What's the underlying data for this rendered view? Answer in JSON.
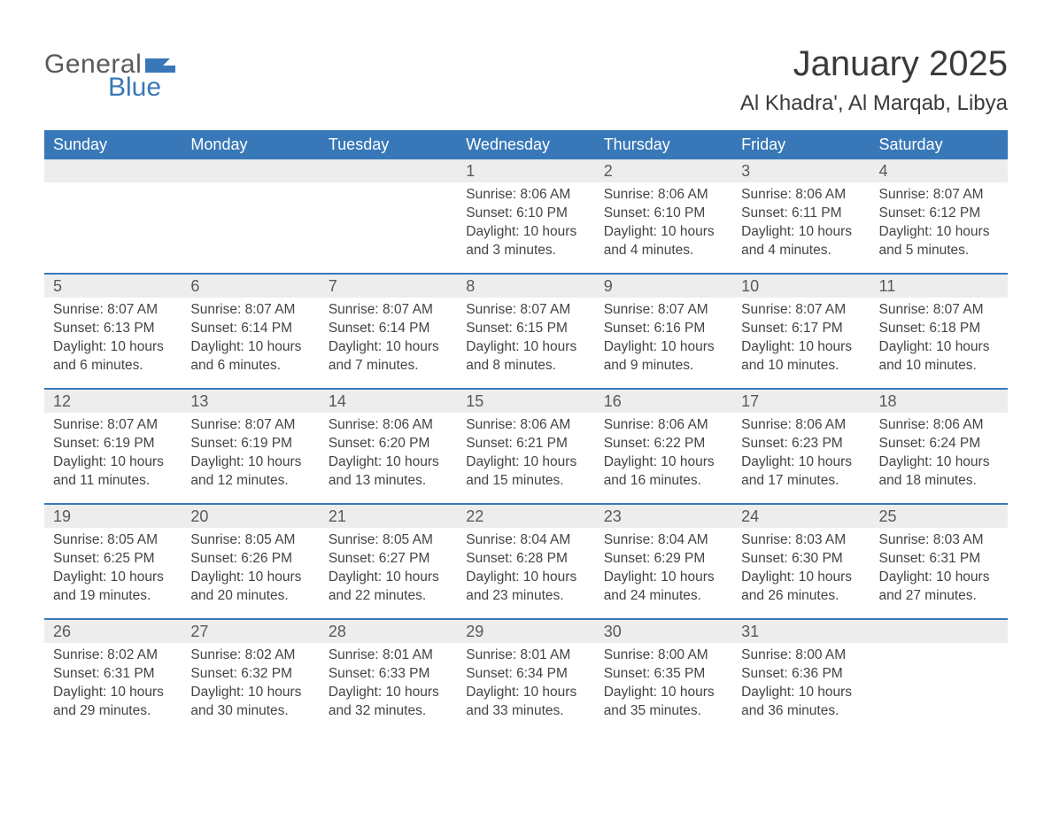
{
  "logo": {
    "general": "General",
    "blue": "Blue",
    "flag_color": "#3878b8"
  },
  "title": "January 2025",
  "location": "Al Khadra', Al Marqab, Libya",
  "colors": {
    "header_bg": "#3878b8",
    "header_text": "#ffffff",
    "daynum_bg": "#ededed",
    "text": "#444444",
    "rule": "#3878b8"
  },
  "weekdays": [
    "Sunday",
    "Monday",
    "Tuesday",
    "Wednesday",
    "Thursday",
    "Friday",
    "Saturday"
  ],
  "weeks": [
    [
      {
        "empty": true
      },
      {
        "empty": true
      },
      {
        "empty": true
      },
      {
        "day": "1",
        "sunrise": "Sunrise: 8:06 AM",
        "sunset": "Sunset: 6:10 PM",
        "daylight1": "Daylight: 10 hours",
        "daylight2": "and 3 minutes."
      },
      {
        "day": "2",
        "sunrise": "Sunrise: 8:06 AM",
        "sunset": "Sunset: 6:10 PM",
        "daylight1": "Daylight: 10 hours",
        "daylight2": "and 4 minutes."
      },
      {
        "day": "3",
        "sunrise": "Sunrise: 8:06 AM",
        "sunset": "Sunset: 6:11 PM",
        "daylight1": "Daylight: 10 hours",
        "daylight2": "and 4 minutes."
      },
      {
        "day": "4",
        "sunrise": "Sunrise: 8:07 AM",
        "sunset": "Sunset: 6:12 PM",
        "daylight1": "Daylight: 10 hours",
        "daylight2": "and 5 minutes."
      }
    ],
    [
      {
        "day": "5",
        "sunrise": "Sunrise: 8:07 AM",
        "sunset": "Sunset: 6:13 PM",
        "daylight1": "Daylight: 10 hours",
        "daylight2": "and 6 minutes."
      },
      {
        "day": "6",
        "sunrise": "Sunrise: 8:07 AM",
        "sunset": "Sunset: 6:14 PM",
        "daylight1": "Daylight: 10 hours",
        "daylight2": "and 6 minutes."
      },
      {
        "day": "7",
        "sunrise": "Sunrise: 8:07 AM",
        "sunset": "Sunset: 6:14 PM",
        "daylight1": "Daylight: 10 hours",
        "daylight2": "and 7 minutes."
      },
      {
        "day": "8",
        "sunrise": "Sunrise: 8:07 AM",
        "sunset": "Sunset: 6:15 PM",
        "daylight1": "Daylight: 10 hours",
        "daylight2": "and 8 minutes."
      },
      {
        "day": "9",
        "sunrise": "Sunrise: 8:07 AM",
        "sunset": "Sunset: 6:16 PM",
        "daylight1": "Daylight: 10 hours",
        "daylight2": "and 9 minutes."
      },
      {
        "day": "10",
        "sunrise": "Sunrise: 8:07 AM",
        "sunset": "Sunset: 6:17 PM",
        "daylight1": "Daylight: 10 hours",
        "daylight2": "and 10 minutes."
      },
      {
        "day": "11",
        "sunrise": "Sunrise: 8:07 AM",
        "sunset": "Sunset: 6:18 PM",
        "daylight1": "Daylight: 10 hours",
        "daylight2": "and 10 minutes."
      }
    ],
    [
      {
        "day": "12",
        "sunrise": "Sunrise: 8:07 AM",
        "sunset": "Sunset: 6:19 PM",
        "daylight1": "Daylight: 10 hours",
        "daylight2": "and 11 minutes."
      },
      {
        "day": "13",
        "sunrise": "Sunrise: 8:07 AM",
        "sunset": "Sunset: 6:19 PM",
        "daylight1": "Daylight: 10 hours",
        "daylight2": "and 12 minutes."
      },
      {
        "day": "14",
        "sunrise": "Sunrise: 8:06 AM",
        "sunset": "Sunset: 6:20 PM",
        "daylight1": "Daylight: 10 hours",
        "daylight2": "and 13 minutes."
      },
      {
        "day": "15",
        "sunrise": "Sunrise: 8:06 AM",
        "sunset": "Sunset: 6:21 PM",
        "daylight1": "Daylight: 10 hours",
        "daylight2": "and 15 minutes."
      },
      {
        "day": "16",
        "sunrise": "Sunrise: 8:06 AM",
        "sunset": "Sunset: 6:22 PM",
        "daylight1": "Daylight: 10 hours",
        "daylight2": "and 16 minutes."
      },
      {
        "day": "17",
        "sunrise": "Sunrise: 8:06 AM",
        "sunset": "Sunset: 6:23 PM",
        "daylight1": "Daylight: 10 hours",
        "daylight2": "and 17 minutes."
      },
      {
        "day": "18",
        "sunrise": "Sunrise: 8:06 AM",
        "sunset": "Sunset: 6:24 PM",
        "daylight1": "Daylight: 10 hours",
        "daylight2": "and 18 minutes."
      }
    ],
    [
      {
        "day": "19",
        "sunrise": "Sunrise: 8:05 AM",
        "sunset": "Sunset: 6:25 PM",
        "daylight1": "Daylight: 10 hours",
        "daylight2": "and 19 minutes."
      },
      {
        "day": "20",
        "sunrise": "Sunrise: 8:05 AM",
        "sunset": "Sunset: 6:26 PM",
        "daylight1": "Daylight: 10 hours",
        "daylight2": "and 20 minutes."
      },
      {
        "day": "21",
        "sunrise": "Sunrise: 8:05 AM",
        "sunset": "Sunset: 6:27 PM",
        "daylight1": "Daylight: 10 hours",
        "daylight2": "and 22 minutes."
      },
      {
        "day": "22",
        "sunrise": "Sunrise: 8:04 AM",
        "sunset": "Sunset: 6:28 PM",
        "daylight1": "Daylight: 10 hours",
        "daylight2": "and 23 minutes."
      },
      {
        "day": "23",
        "sunrise": "Sunrise: 8:04 AM",
        "sunset": "Sunset: 6:29 PM",
        "daylight1": "Daylight: 10 hours",
        "daylight2": "and 24 minutes."
      },
      {
        "day": "24",
        "sunrise": "Sunrise: 8:03 AM",
        "sunset": "Sunset: 6:30 PM",
        "daylight1": "Daylight: 10 hours",
        "daylight2": "and 26 minutes."
      },
      {
        "day": "25",
        "sunrise": "Sunrise: 8:03 AM",
        "sunset": "Sunset: 6:31 PM",
        "daylight1": "Daylight: 10 hours",
        "daylight2": "and 27 minutes."
      }
    ],
    [
      {
        "day": "26",
        "sunrise": "Sunrise: 8:02 AM",
        "sunset": "Sunset: 6:31 PM",
        "daylight1": "Daylight: 10 hours",
        "daylight2": "and 29 minutes."
      },
      {
        "day": "27",
        "sunrise": "Sunrise: 8:02 AM",
        "sunset": "Sunset: 6:32 PM",
        "daylight1": "Daylight: 10 hours",
        "daylight2": "and 30 minutes."
      },
      {
        "day": "28",
        "sunrise": "Sunrise: 8:01 AM",
        "sunset": "Sunset: 6:33 PM",
        "daylight1": "Daylight: 10 hours",
        "daylight2": "and 32 minutes."
      },
      {
        "day": "29",
        "sunrise": "Sunrise: 8:01 AM",
        "sunset": "Sunset: 6:34 PM",
        "daylight1": "Daylight: 10 hours",
        "daylight2": "and 33 minutes."
      },
      {
        "day": "30",
        "sunrise": "Sunrise: 8:00 AM",
        "sunset": "Sunset: 6:35 PM",
        "daylight1": "Daylight: 10 hours",
        "daylight2": "and 35 minutes."
      },
      {
        "day": "31",
        "sunrise": "Sunrise: 8:00 AM",
        "sunset": "Sunset: 6:36 PM",
        "daylight1": "Daylight: 10 hours",
        "daylight2": "and 36 minutes."
      },
      {
        "empty": true
      }
    ]
  ]
}
